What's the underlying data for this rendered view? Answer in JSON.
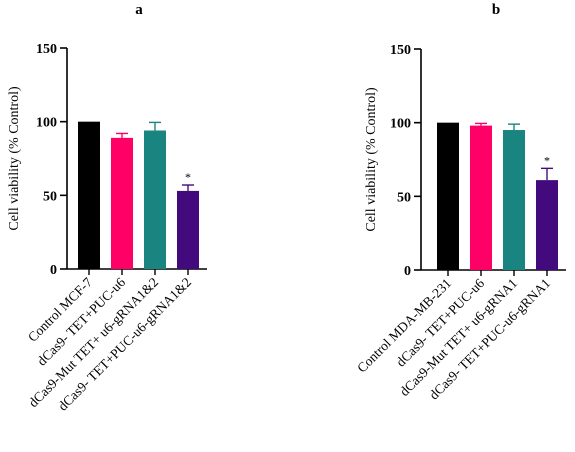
{
  "chart_data": [
    {
      "panel_label": "a",
      "type": "bar",
      "ylabel": "Cell viability (% Control)",
      "xlabel": "",
      "ylim": [
        0,
        150
      ],
      "yticks": [
        "0",
        "50",
        "100",
        "150"
      ],
      "categories": [
        "Control MCF-7",
        "dCas9- TET+PUC-u6",
        "dCas9-Mut TET+ u6-gRNA1&2",
        "dCas9- TET+PUC-u6-gRNA1&2"
      ],
      "values": [
        100,
        89,
        94,
        53
      ],
      "errors": [
        0,
        3,
        5.5,
        4
      ],
      "colors": [
        "#000000",
        "#ff0066",
        "#1a8580",
        "#430a7d"
      ],
      "annotations": [
        "",
        "",
        "",
        "*"
      ],
      "grid": false,
      "legend": "none"
    },
    {
      "panel_label": "b",
      "type": "bar",
      "ylabel": "Cell viability (% Control)",
      "xlabel": "",
      "ylim": [
        0,
        150
      ],
      "yticks": [
        "0",
        "50",
        "100",
        "150"
      ],
      "categories": [
        "Control MDA-MB-231",
        "dCas9- TET+PUC-u6",
        "dCas9-Mut TET+ u6-gRNA1",
        "dCas9- TET+PUC-u6-gRNA1"
      ],
      "values": [
        100,
        98,
        95,
        61
      ],
      "errors": [
        0,
        1.5,
        4,
        8
      ],
      "colors": [
        "#000000",
        "#ff0066",
        "#1a8580",
        "#430a7d"
      ],
      "annotations": [
        "",
        "",
        "",
        "*"
      ],
      "grid": false,
      "legend": "none"
    }
  ]
}
